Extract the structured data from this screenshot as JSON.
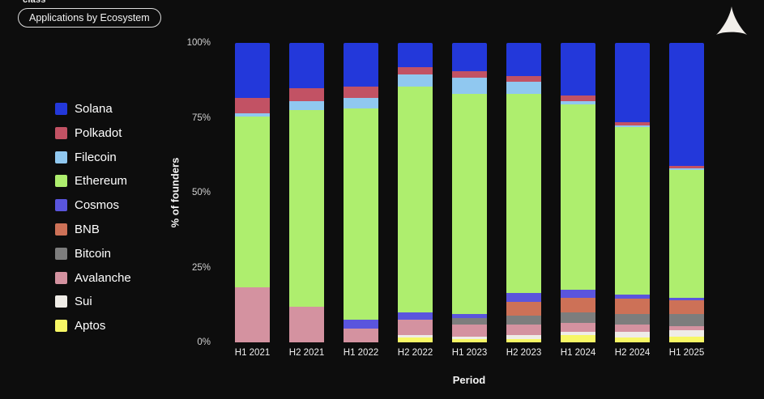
{
  "page": {
    "background": "#0d0d0d",
    "top_left_cut_text": "class",
    "filter_button_label": "Applications by Ecosystem",
    "logo_icon": "alliance-triangle-logo",
    "logo_color": "#f2efeb"
  },
  "chart_data": {
    "type": "bar",
    "stacked": true,
    "percent_stacked": true,
    "title": "",
    "xlabel": "Period",
    "ylabel": "% of founders",
    "ylim": [
      0,
      100
    ],
    "y_ticks": [
      0,
      25,
      50,
      75,
      100
    ],
    "y_tick_labels": [
      "0%",
      "25%",
      "50%",
      "75%",
      "100%"
    ],
    "grid": false,
    "legend_position": "left",
    "categories": [
      "H1 2021",
      "H2 2021",
      "H1 2022",
      "H2 2022",
      "H1 2023",
      "H2 2023",
      "H1 2024",
      "H2 2024",
      "H1 2025"
    ],
    "series": [
      {
        "name": "Solana",
        "color": "#2338da",
        "values": [
          18.5,
          15,
          14.5,
          8,
          9.5,
          11,
          17.5,
          26.5,
          41
        ]
      },
      {
        "name": "Polkadot",
        "color": "#c25264",
        "values": [
          5,
          4.5,
          4,
          2.5,
          2,
          2,
          2,
          1,
          1
        ]
      },
      {
        "name": "Filecoin",
        "color": "#90c8f0",
        "values": [
          1,
          3,
          3.5,
          4,
          5.5,
          4,
          1,
          0.5,
          0.5
        ]
      },
      {
        "name": "Ethereum",
        "color": "#aeee6e",
        "values": [
          57,
          65.5,
          70.5,
          75.5,
          73.5,
          66.5,
          62,
          56,
          42.5
        ]
      },
      {
        "name": "Cosmos",
        "color": "#5a55dd",
        "values": [
          0,
          0,
          3,
          2.5,
          1.5,
          3,
          2.5,
          1.5,
          1
        ]
      },
      {
        "name": "BNB",
        "color": "#cd7157",
        "values": [
          0,
          0,
          0,
          0,
          0,
          4.5,
          5,
          5,
          4.5
        ]
      },
      {
        "name": "Bitcoin",
        "color": "#7d7d7d",
        "values": [
          0,
          0,
          0,
          0,
          2,
          3,
          3.5,
          3.5,
          4
        ]
      },
      {
        "name": "Avalanche",
        "color": "#d492a0",
        "values": [
          18.5,
          12,
          4.5,
          5,
          4,
          3.5,
          3,
          2.5,
          1.5
        ]
      },
      {
        "name": "Sui",
        "color": "#efece7",
        "values": [
          0,
          0,
          0,
          1,
          1,
          1.5,
          1,
          2,
          2
        ]
      },
      {
        "name": "Aptos",
        "color": "#f7f765",
        "values": [
          0,
          0,
          0,
          1.5,
          1,
          1,
          2.5,
          1.5,
          2
        ]
      }
    ]
  }
}
